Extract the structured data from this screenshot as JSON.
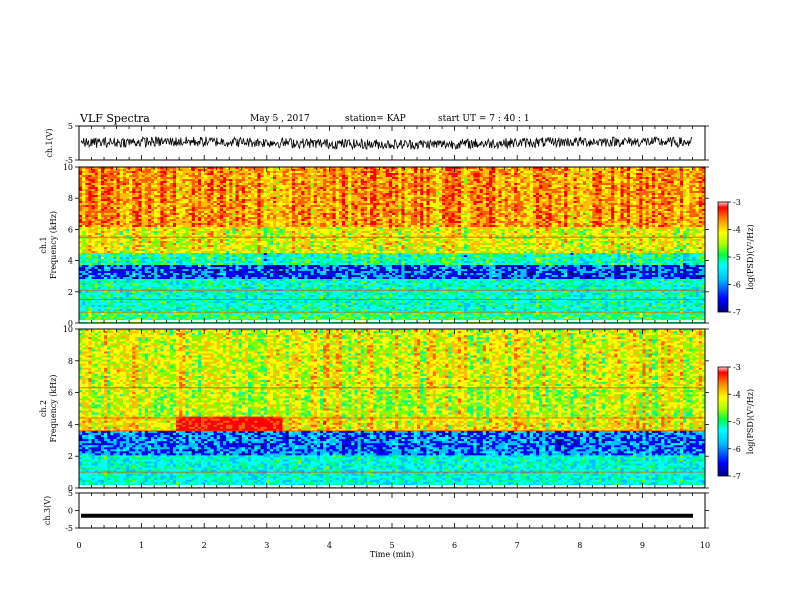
{
  "header": {
    "title": "VLF Spectra",
    "date": "May 5 , 2017",
    "station": "station= KAP",
    "start": "start UT = 7 : 40 : 1"
  },
  "chart_data": [
    {
      "type": "line",
      "name": "ch1-waveform",
      "ylabel": "ch.1(V)",
      "xlim": [
        0,
        10
      ],
      "ylim": [
        -5,
        5
      ],
      "yticks": [
        "5",
        "-5"
      ],
      "description_values": {
        "baseline": 0,
        "amplitude": 1.5
      }
    },
    {
      "type": "heatmap",
      "name": "ch1-spectrogram",
      "ylabel_line1": "ch.1",
      "ylabel_line2": "Frequency (kHz)",
      "xlim": [
        0,
        10
      ],
      "ylim": [
        0,
        10
      ],
      "yticks": [
        "0",
        "2",
        "4",
        "6",
        "8",
        "10"
      ],
      "colorbar": {
        "label": "log(PSD)(V²/Hz)",
        "ticks": [
          "-3",
          "-4",
          "-5",
          "-6",
          "-7"
        ],
        "range": [
          -7,
          -3
        ]
      }
    },
    {
      "type": "heatmap",
      "name": "ch2-spectrogram",
      "ylabel_line1": "ch.2",
      "ylabel_line2": "Frequency (kHz)",
      "xlim": [
        0,
        10
      ],
      "ylim": [
        0,
        10
      ],
      "yticks": [
        "0",
        "2",
        "4",
        "6",
        "8",
        "10"
      ],
      "colorbar": {
        "label": "log(PSD)(V²/Hz)",
        "ticks": [
          "-3",
          "-4",
          "-5",
          "-6",
          "-7"
        ],
        "range": [
          -7,
          -3
        ]
      }
    },
    {
      "type": "line",
      "name": "ch3-waveform",
      "ylabel": "ch.3(V)",
      "xlim": [
        0,
        10
      ],
      "ylim": [
        -5,
        5
      ],
      "yticks": [
        "5",
        "0",
        "-5"
      ],
      "constant_value": -1.5
    }
  ],
  "xaxis": {
    "label": "Time (min)",
    "ticks": [
      "0",
      "1",
      "2",
      "3",
      "4",
      "5",
      "6",
      "7",
      "8",
      "9",
      "10"
    ]
  },
  "colors": {
    "spectrum": [
      "#00008b",
      "#0000ff",
      "#00bfff",
      "#00ffff",
      "#00ff80",
      "#7fff00",
      "#ffff00",
      "#ffbf00",
      "#ff6000",
      "#ff0000"
    ]
  }
}
